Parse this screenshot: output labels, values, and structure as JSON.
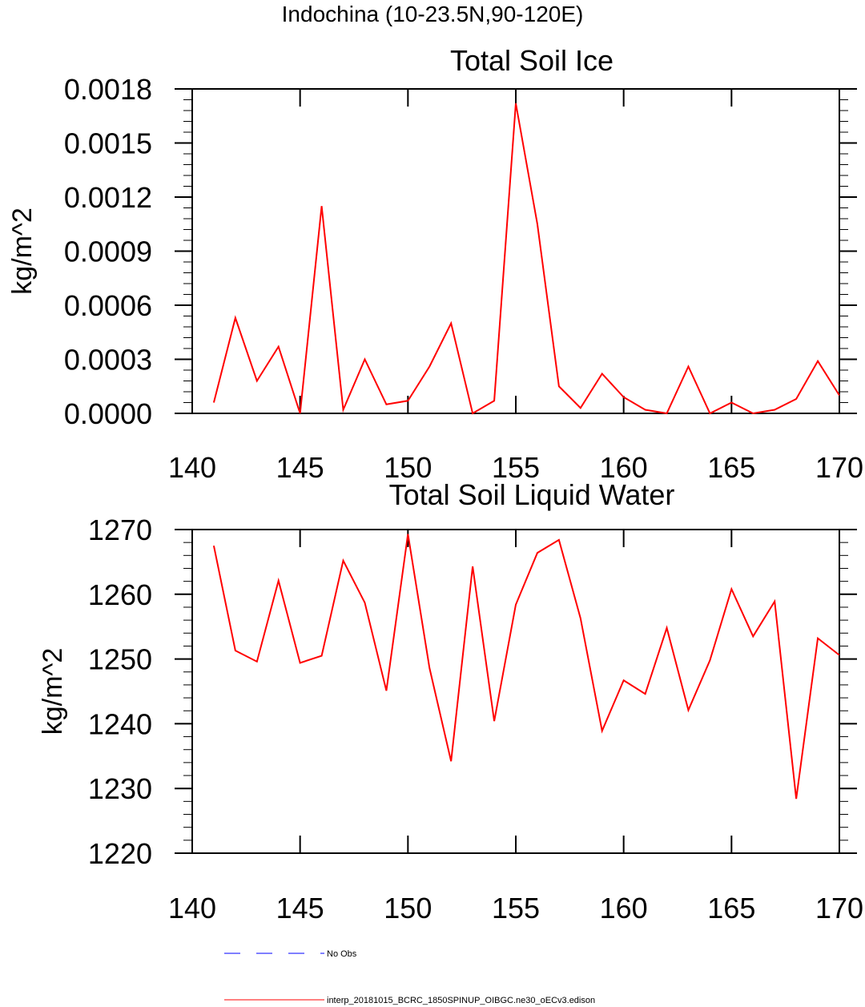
{
  "figure": {
    "title": "Indochina (10-23.5N,90-120E)"
  },
  "legend": {
    "placement": "bottom",
    "entries": [
      {
        "label": "No Obs",
        "color": "#0000ff",
        "style": "dashed"
      },
      {
        "label": "interp_20181015_BCRC_1850SPINUP_OIBGC.ne30_oECv3.edison",
        "color": "#ff0000",
        "style": "solid"
      }
    ]
  },
  "chart_data": [
    {
      "type": "line",
      "title": "Total Soil Ice",
      "xlabel": "",
      "ylabel": "kg/m^2",
      "xlim": [
        140,
        170
      ],
      "ylim": [
        0,
        0.0018
      ],
      "xticks": [
        "140",
        "145",
        "150",
        "155",
        "160",
        "165",
        "170"
      ],
      "yticks": [
        "0.0000",
        "0.0003",
        "0.0006",
        "0.0009",
        "0.0012",
        "0.0015",
        "0.0018"
      ],
      "grid": false,
      "x": [
        141,
        142,
        143,
        144,
        145,
        146,
        147,
        148,
        149,
        150,
        151,
        152,
        153,
        154,
        155,
        156,
        157,
        158,
        159,
        160,
        161,
        162,
        163,
        164,
        165,
        166,
        167,
        168,
        169,
        170
      ],
      "series": [
        {
          "name": "interp_20181015_BCRC_1850SPINUP_OIBGC.ne30_oECv3.edison",
          "color": "#ff0000",
          "values": [
            6e-05,
            0.00053,
            0.00018,
            0.00037,
            0.0,
            0.00115,
            2e-05,
            0.0003,
            5e-05,
            7e-05,
            0.00026,
            0.0005,
            0.0,
            7e-05,
            0.00172,
            0.00105,
            0.00015,
            3e-05,
            0.00022,
            9e-05,
            2e-05,
            0.0,
            0.00026,
            0.0,
            6e-05,
            0.0,
            2e-05,
            8e-05,
            0.00029,
            0.0001
          ]
        }
      ]
    },
    {
      "type": "line",
      "title": "Total Soil Liquid Water",
      "xlabel": "",
      "ylabel": "kg/m^2",
      "xlim": [
        140,
        170
      ],
      "ylim": [
        1220,
        1270
      ],
      "xticks": [
        "140",
        "145",
        "150",
        "155",
        "160",
        "165",
        "170"
      ],
      "yticks": [
        "1220",
        "1230",
        "1240",
        "1250",
        "1260",
        "1270"
      ],
      "grid": false,
      "x": [
        141,
        142,
        143,
        144,
        145,
        146,
        147,
        148,
        149,
        150,
        151,
        152,
        153,
        154,
        155,
        156,
        157,
        158,
        159,
        160,
        161,
        162,
        163,
        164,
        165,
        166,
        167,
        168,
        169,
        170
      ],
      "series": [
        {
          "name": "interp_20181015_BCRC_1850SPINUP_OIBGC.ne30_oECv3.edison",
          "color": "#ff0000",
          "values": [
            1267.5,
            1251.3,
            1249.6,
            1262.1,
            1249.4,
            1250.5,
            1265.2,
            1258.7,
            1245.1,
            1269.3,
            1248.6,
            1234.2,
            1264.3,
            1240.4,
            1258.4,
            1266.4,
            1268.4,
            1256.3,
            1238.9,
            1246.7,
            1244.6,
            1254.8,
            1242.1,
            1249.8,
            1260.8,
            1253.5,
            1258.9,
            1228.4,
            1253.2,
            1250.6
          ]
        }
      ]
    }
  ]
}
